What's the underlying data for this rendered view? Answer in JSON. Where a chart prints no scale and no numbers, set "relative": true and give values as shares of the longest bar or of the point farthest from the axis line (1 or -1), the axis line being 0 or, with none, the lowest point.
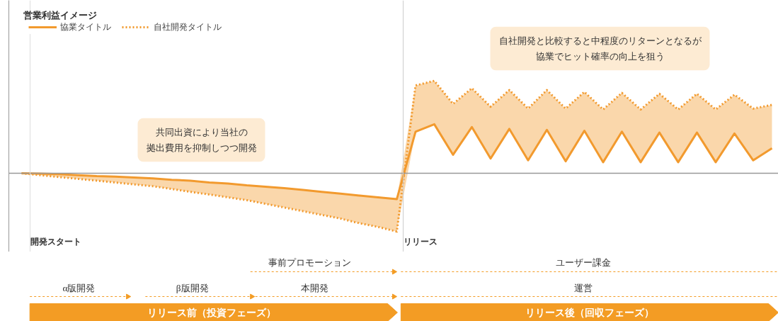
{
  "chart_data": {
    "type": "line",
    "relative": true,
    "tick_labels": false,
    "grid": false,
    "legend": "top left",
    "categories": [
      null,
      null,
      null,
      null,
      null,
      null,
      null,
      null,
      null,
      null,
      null,
      null,
      null,
      null,
      null,
      null,
      null,
      null,
      null,
      null,
      null,
      null,
      null,
      null,
      null,
      null,
      null,
      null,
      null,
      null,
      null,
      null,
      null,
      null,
      null,
      null,
      null,
      null,
      null,
      null,
      null
    ],
    "series": [
      {
        "name": "協業タイトル",
        "color": "#f29a2e",
        "line_style": "solid",
        "values": [
          0,
          -0.004,
          -0.01,
          -0.02,
          -0.03,
          -0.035,
          -0.045,
          -0.055,
          -0.07,
          -0.08,
          -0.1,
          -0.11,
          -0.13,
          -0.145,
          -0.16,
          -0.18,
          -0.2,
          -0.22,
          -0.24,
          -0.26,
          -0.28,
          0.45,
          0.53,
          0.2,
          0.5,
          0.16,
          0.48,
          0.14,
          0.47,
          0.13,
          0.46,
          0.12,
          0.45,
          0.12,
          0.44,
          0.12,
          0.44,
          0.12,
          0.43,
          0.14,
          0.27
        ],
        "lower": [
          0,
          -0.02,
          -0.04,
          -0.06,
          -0.08,
          -0.1,
          -0.12,
          -0.14,
          -0.17,
          -0.2,
          -0.23,
          -0.26,
          -0.29,
          -0.33,
          -0.37,
          -0.41,
          -0.45,
          -0.49,
          -0.54,
          -0.58,
          -0.63,
          0.45,
          0.53,
          0.2,
          0.5,
          0.16,
          0.48,
          0.14,
          0.47,
          0.13,
          0.46,
          0.12,
          0.45,
          0.12,
          0.44,
          0.12,
          0.44,
          0.12,
          0.43,
          0.14,
          0.27
        ],
        "upper": [
          0,
          -0.004,
          -0.01,
          -0.02,
          -0.03,
          -0.035,
          -0.045,
          -0.055,
          -0.07,
          -0.08,
          -0.1,
          -0.11,
          -0.13,
          -0.145,
          -0.16,
          -0.18,
          -0.2,
          -0.22,
          -0.24,
          -0.26,
          -0.28,
          0.95,
          1.0,
          0.75,
          0.92,
          0.72,
          0.9,
          0.7,
          0.9,
          0.7,
          0.88,
          0.69,
          0.87,
          0.69,
          0.86,
          0.69,
          0.86,
          0.69,
          0.85,
          0.7,
          0.74
        ]
      },
      {
        "name": "自社開発タイトル",
        "color": "#f29a2e",
        "line_style": "dotted",
        "values": [
          0,
          -0.02,
          -0.04,
          -0.06,
          -0.08,
          -0.1,
          -0.12,
          -0.14,
          -0.17,
          -0.2,
          -0.23,
          -0.26,
          -0.29,
          -0.33,
          -0.37,
          -0.41,
          -0.45,
          -0.49,
          -0.54,
          -0.58,
          -0.63,
          0.95,
          1.0,
          0.75,
          0.92,
          0.72,
          0.9,
          0.7,
          0.9,
          0.7,
          0.88,
          0.69,
          0.87,
          0.69,
          0.86,
          0.69,
          0.86,
          0.69,
          0.85,
          0.7,
          0.74
        ]
      }
    ],
    "annotations": [
      "共同出資により当社の拠出費用を抑制しつつ開発",
      "自社開発と比較すると中程度のリターンとなるが協業でヒット確率の向上を狙う",
      "開発スタート",
      "リリース",
      "事前プロモーション",
      "ユーザー課金",
      "α版開発",
      "β版開発",
      "本開発",
      "運営",
      "リリース前（投資フェーズ）",
      "リリース後（回収フェーズ）",
      "営業利益イメージ"
    ]
  }
}
